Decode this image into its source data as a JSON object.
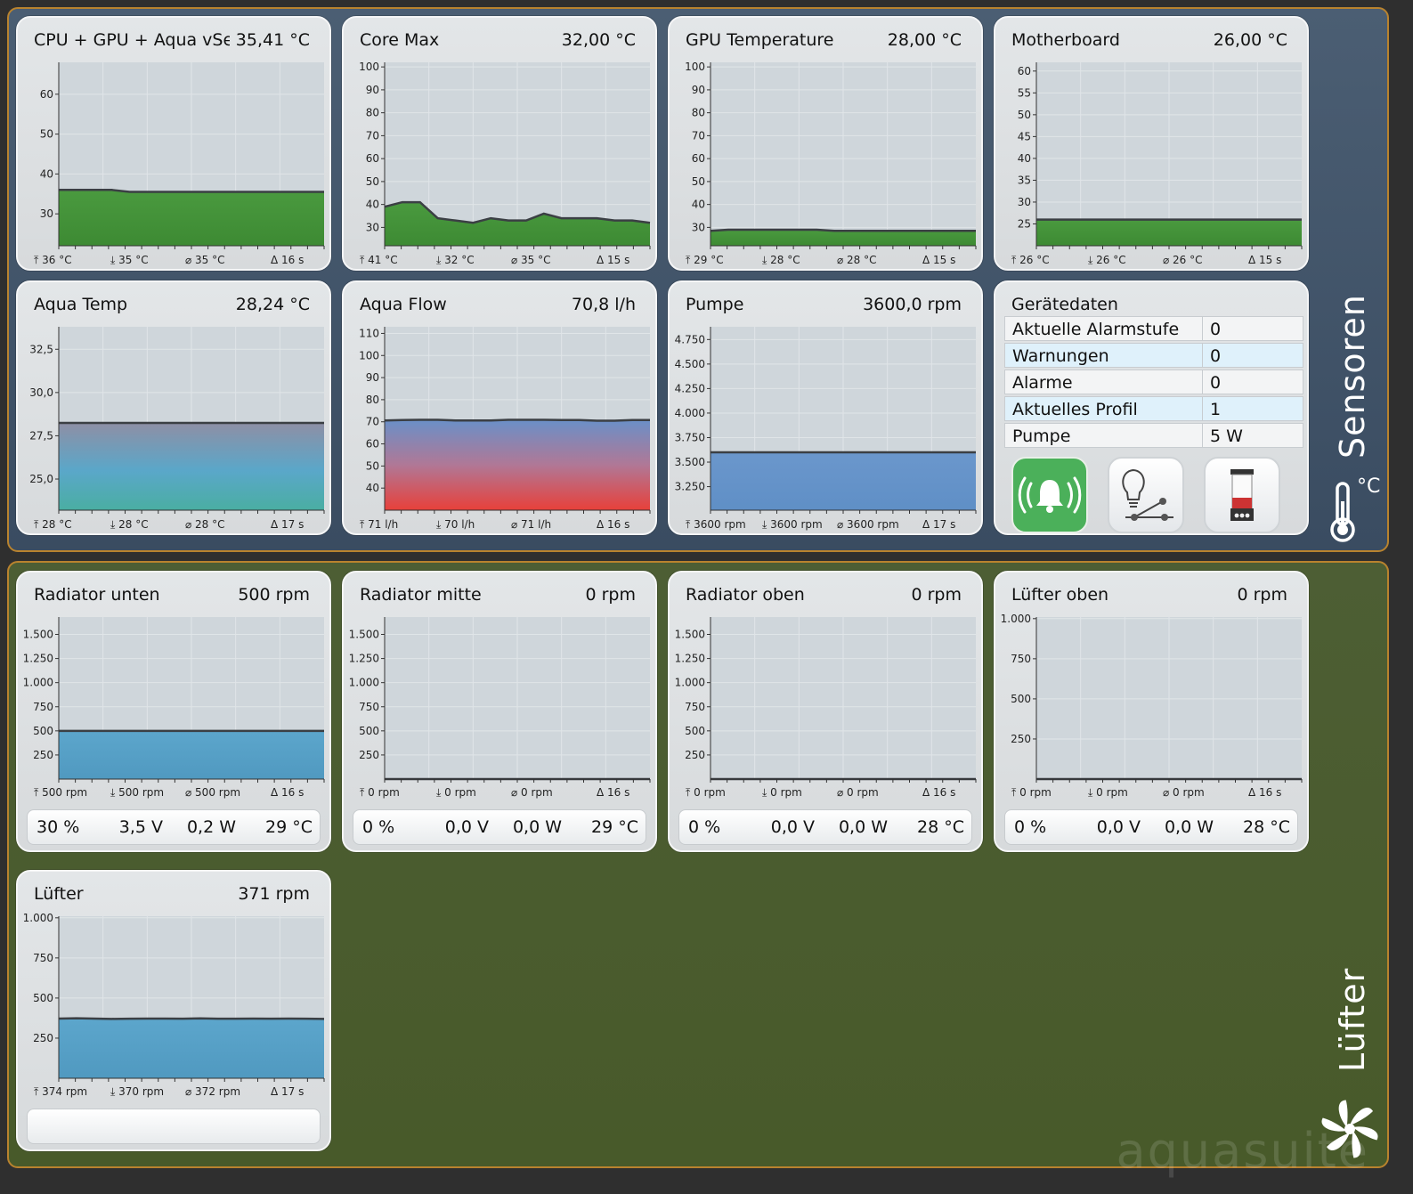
{
  "groups": {
    "sensors_label": "Sensoren",
    "sensors_unit": "°C",
    "fans_label": "Lüfter",
    "brand": "aquasuite"
  },
  "colors": {
    "accent_border": "#b9832e",
    "sensors_bg": "#4b5e73",
    "fans_bg": "#4d5e34",
    "active_button": "#4bb05a"
  },
  "tiles": [
    {
      "title": "CPU + GPU + Aqua vSen",
      "value": "35,41 °C",
      "max": "36 °C",
      "min": "35 °C",
      "avg": "35 °C",
      "dur": "16 s",
      "chart_data": {
        "type": "area",
        "ylim": [
          22,
          68
        ],
        "yticks": [
          30,
          40,
          50,
          60
        ],
        "ytick_labels": [
          "30",
          "40",
          "50",
          "60"
        ],
        "values": [
          36,
          36,
          36,
          36,
          35.5,
          35.5,
          35.5,
          35.5,
          35.5,
          35.5,
          35.5,
          35.5,
          35.5,
          35.5,
          35.5,
          35.5
        ]
      }
    },
    {
      "title": "Core Max",
      "value": "32,00 °C",
      "max": "41 °C",
      "min": "32 °C",
      "avg": "35 °C",
      "dur": "15 s",
      "chart_data": {
        "type": "area",
        "ylim": [
          22,
          102
        ],
        "yticks": [
          30,
          40,
          50,
          60,
          70,
          80,
          90,
          100
        ],
        "ytick_labels": [
          "30",
          "40",
          "50",
          "60",
          "70",
          "80",
          "90",
          "100"
        ],
        "values": [
          39,
          41,
          41,
          34,
          33,
          32,
          34,
          33,
          33,
          36,
          34,
          34,
          34,
          33,
          33,
          32
        ]
      }
    },
    {
      "title": "GPU Temperature",
      "value": "28,00 °C",
      "max": "29 °C",
      "min": "28 °C",
      "avg": "28 °C",
      "dur": "15 s",
      "chart_data": {
        "type": "area",
        "ylim": [
          22,
          102
        ],
        "yticks": [
          30,
          40,
          50,
          60,
          70,
          80,
          90,
          100
        ],
        "ytick_labels": [
          "30",
          "40",
          "50",
          "60",
          "70",
          "80",
          "90",
          "100"
        ],
        "values": [
          28.5,
          29,
          29,
          29,
          29,
          29,
          29,
          28.5,
          28.5,
          28.5,
          28.5,
          28.5,
          28.5,
          28.5,
          28.5,
          28.5
        ]
      }
    },
    {
      "title": "Motherboard",
      "value": "26,00 °C",
      "max": "26 °C",
      "min": "26 °C",
      "avg": "26 °C",
      "dur": "15 s",
      "chart_data": {
        "type": "area",
        "ylim": [
          20,
          62
        ],
        "yticks": [
          25,
          30,
          35,
          40,
          45,
          50,
          55,
          60
        ],
        "ytick_labels": [
          "25",
          "30",
          "35",
          "40",
          "45",
          "50",
          "55",
          "60"
        ],
        "values": [
          26,
          26,
          26,
          26,
          26,
          26,
          26,
          26,
          26,
          26,
          26,
          26,
          26,
          26,
          26,
          26
        ]
      }
    },
    {
      "title": "Aqua Temp",
      "value": "28,24 °C",
      "max": "28 °C",
      "min": "28 °C",
      "avg": "28 °C",
      "dur": "17 s",
      "chart_data": {
        "type": "area",
        "ylim": [
          23.2,
          33.8
        ],
        "yticks": [
          25,
          27.5,
          30,
          32.5
        ],
        "ytick_labels": [
          "25,0",
          "27,5",
          "30,0",
          "32,5"
        ],
        "values": [
          28.24,
          28.24,
          28.24,
          28.24,
          28.24,
          28.24,
          28.24,
          28.24,
          28.24,
          28.24,
          28.24,
          28.24,
          28.24,
          28.24,
          28.24,
          28.24
        ]
      }
    },
    {
      "title": "Aqua Flow",
      "value": "70,8 l/h",
      "max": "71 l/h",
      "min": "70 l/h",
      "avg": "71 l/h",
      "dur": "16 s",
      "chart_data": {
        "type": "area",
        "ylim": [
          30,
          113
        ],
        "yticks": [
          40,
          50,
          60,
          70,
          80,
          90,
          100,
          110
        ],
        "ytick_labels": [
          "40",
          "50",
          "60",
          "70",
          "80",
          "90",
          "100",
          "110"
        ],
        "values": [
          70.6,
          70.8,
          70.9,
          70.9,
          70.6,
          70.6,
          70.6,
          70.9,
          70.9,
          70.9,
          70.8,
          70.8,
          70.5,
          70.5,
          70.8,
          70.8
        ]
      }
    },
    {
      "title": "Pumpe",
      "value": "3600,0 rpm",
      "max": "3600 rpm",
      "min": "3600 rpm",
      "avg": "3600 rpm",
      "dur": "17 s",
      "chart_data": {
        "type": "area",
        "ylim": [
          3010,
          4880
        ],
        "yticks": [
          3250,
          3500,
          3750,
          4000,
          4250,
          4500,
          4750
        ],
        "ytick_labels": [
          "3.250",
          "3.500",
          "3.750",
          "4.000",
          "4.250",
          "4.500",
          "4.750"
        ],
        "values": [
          3600,
          3600,
          3600,
          3600,
          3600,
          3600,
          3600,
          3600,
          3600,
          3600,
          3600,
          3600,
          3600,
          3600,
          3600,
          3600
        ]
      }
    },
    {
      "title": "Radiator unten",
      "value": "500 rpm",
      "max": "500 rpm",
      "min": "500 rpm",
      "avg": "500 rpm",
      "dur": "16 s",
      "elec": {
        "pct": "30 %",
        "volt": "3,5 V",
        "watt": "0,2 W",
        "temp": "29 °C"
      },
      "chart_data": {
        "type": "area",
        "ylim": [
          0,
          1680
        ],
        "yticks": [
          250,
          500,
          750,
          1000,
          1250,
          1500
        ],
        "ytick_labels": [
          "250",
          "500",
          "750",
          "1.000",
          "1.250",
          "1.500"
        ],
        "values": [
          500,
          500,
          500,
          500,
          500,
          500,
          500,
          500,
          500,
          500,
          500,
          500,
          500,
          500,
          500,
          500
        ]
      }
    },
    {
      "title": "Radiator mitte",
      "value": "0 rpm",
      "max": "0 rpm",
      "min": "0 rpm",
      "avg": "0 rpm",
      "dur": "16 s",
      "elec": {
        "pct": "0 %",
        "volt": "0,0 V",
        "watt": "0,0 W",
        "temp": "29 °C"
      },
      "chart_data": {
        "type": "area",
        "ylim": [
          0,
          1680
        ],
        "yticks": [
          250,
          500,
          750,
          1000,
          1250,
          1500
        ],
        "ytick_labels": [
          "250",
          "500",
          "750",
          "1.000",
          "1.250",
          "1.500"
        ],
        "values": [
          0,
          0,
          0,
          0,
          0,
          0,
          0,
          0,
          0,
          0,
          0,
          0,
          0,
          0,
          0,
          0
        ]
      }
    },
    {
      "title": "Radiator oben",
      "value": "0 rpm",
      "max": "0 rpm",
      "min": "0 rpm",
      "avg": "0 rpm",
      "dur": "16 s",
      "elec": {
        "pct": "0 %",
        "volt": "0,0 V",
        "watt": "0,0 W",
        "temp": "28 °C"
      },
      "chart_data": {
        "type": "area",
        "ylim": [
          0,
          1680
        ],
        "yticks": [
          250,
          500,
          750,
          1000,
          1250,
          1500
        ],
        "ytick_labels": [
          "250",
          "500",
          "750",
          "1.000",
          "1.250",
          "1.500"
        ],
        "values": [
          0,
          0,
          0,
          0,
          0,
          0,
          0,
          0,
          0,
          0,
          0,
          0,
          0,
          0,
          0,
          0
        ]
      }
    },
    {
      "title": "Lüfter oben",
      "value": "0 rpm",
      "max": "0 rpm",
      "min": "0 rpm",
      "avg": "0 rpm",
      "dur": "16 s",
      "elec": {
        "pct": "0 %",
        "volt": "0,0 V",
        "watt": "0,0 W",
        "temp": "28 °C"
      },
      "chart_data": {
        "type": "area",
        "ylim": [
          0,
          1010
        ],
        "yticks": [
          250,
          500,
          750,
          1000
        ],
        "ytick_labels": [
          "250",
          "500",
          "750",
          "1.000"
        ],
        "values": [
          0,
          0,
          0,
          0,
          0,
          0,
          0,
          0,
          0,
          0,
          0,
          0,
          0,
          0,
          0,
          0
        ]
      }
    },
    {
      "title": "Lüfter",
      "value": "371 rpm",
      "max": "374 rpm",
      "min": "370 rpm",
      "avg": "372 rpm",
      "dur": "17 s",
      "elec": {
        "pct": "",
        "volt": "",
        "watt": "",
        "temp": ""
      },
      "chart_data": {
        "type": "area",
        "ylim": [
          0,
          1010
        ],
        "yticks": [
          250,
          500,
          750,
          1000
        ],
        "ytick_labels": [
          "250",
          "500",
          "750",
          "1.000"
        ],
        "values": [
          372,
          374,
          372,
          370,
          371,
          372,
          372,
          371,
          373,
          371,
          371,
          372,
          371,
          372,
          371,
          370
        ]
      }
    }
  ],
  "device": {
    "title": "Gerätedaten",
    "rows": [
      {
        "key": "Aktuelle Alarmstufe",
        "value": "0"
      },
      {
        "key": "Warnungen",
        "value": "0"
      },
      {
        "key": "Alarme",
        "value": "0"
      },
      {
        "key": "Aktuelles Profil",
        "value": "1"
      },
      {
        "key": "Pumpe",
        "value": "5 W"
      }
    ],
    "buttons": [
      {
        "icon": "alarm-bell-icon",
        "active": true
      },
      {
        "icon": "lightbulb-switch-icon",
        "active": false
      },
      {
        "icon": "reservoir-icon",
        "active": false
      }
    ]
  }
}
